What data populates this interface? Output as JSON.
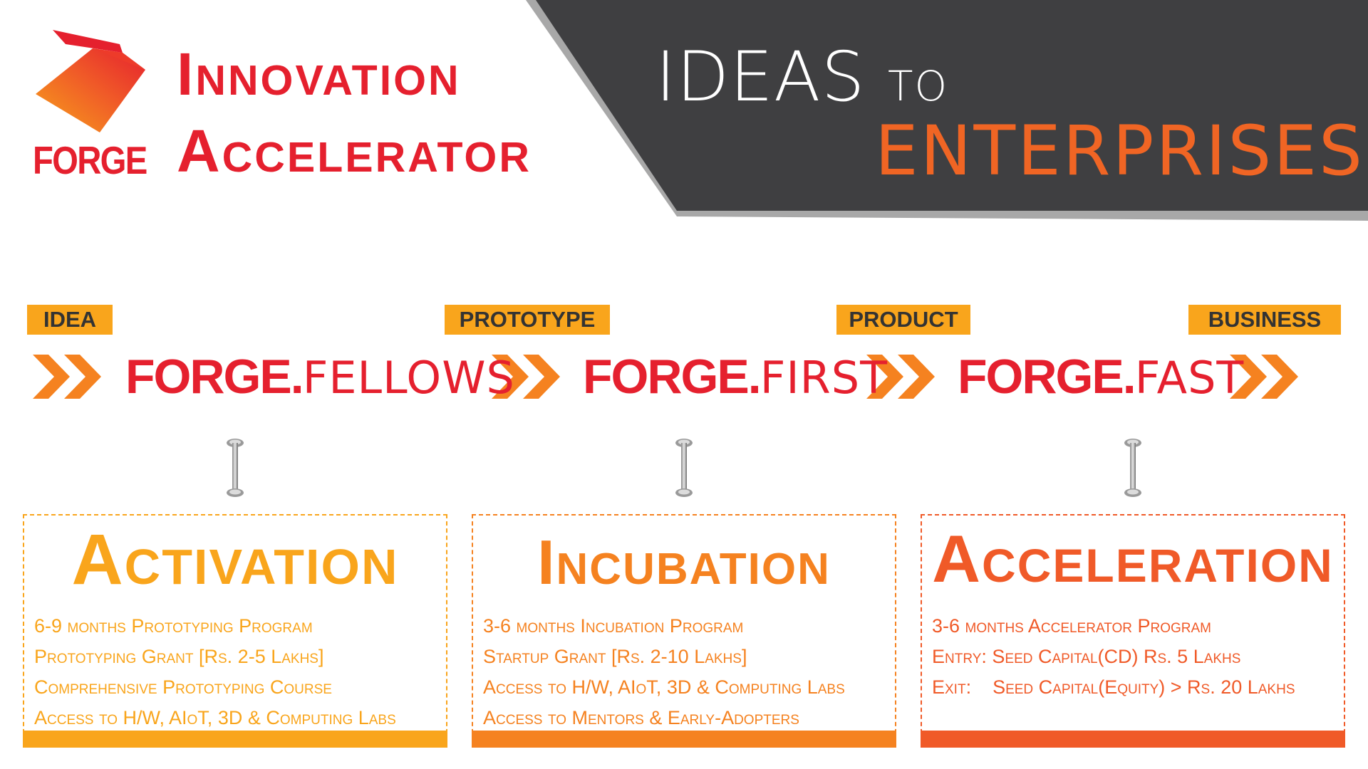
{
  "brand": {
    "logo_text": "FORGE",
    "title_line_1": "Innovation",
    "title_line_2": "Accelerator"
  },
  "tagline": {
    "word_1": "IDEAS",
    "word_2": "TO",
    "word_3": "ENTERPRISES"
  },
  "stages": [
    "IDEA",
    "PROTOTYPE",
    "PRODUCT",
    "BUSINESS"
  ],
  "programs": [
    {
      "brand": "FORGE.",
      "name": "FELLOWS"
    },
    {
      "brand": "FORGE.",
      "name": "FIRST"
    },
    {
      "brand": "FORGE.",
      "name": "FAST"
    }
  ],
  "phases": [
    {
      "title": "Activation",
      "items": [
        "6-9 months Prototyping Program",
        "Prototyping Grant [Rs. 2-5 Lakhs]",
        "Comprehensive Prototyping Course",
        "Access to H/W, AIoT, 3D & Computing Labs"
      ]
    },
    {
      "title": "Incubation",
      "items": [
        "3-6 months Incubation Program",
        "Startup Grant [Rs. 2-10 Lakhs]",
        "Access to H/W, AIoT, 3D & Computing Labs",
        "Access to Mentors & Early-Adopters"
      ]
    },
    {
      "title": "Acceleration",
      "items": [
        "3-6 months Accelerator Program",
        "Entry: Seed Capital(CD) Rs. 5 Lakhs",
        "Exit:    Seed Capital(Equity) > Rs. 20 Lakhs"
      ]
    }
  ],
  "colors": {
    "brand_red": "#e5202e",
    "banner_dark": "#3f3f41",
    "banner_edge": "#a8a8a8",
    "accent_orange": "#f06524",
    "stage_yellow": "#f9a51c",
    "activation": "#f9a51c",
    "incubation": "#f58220",
    "acceleration": "#f05a28"
  }
}
